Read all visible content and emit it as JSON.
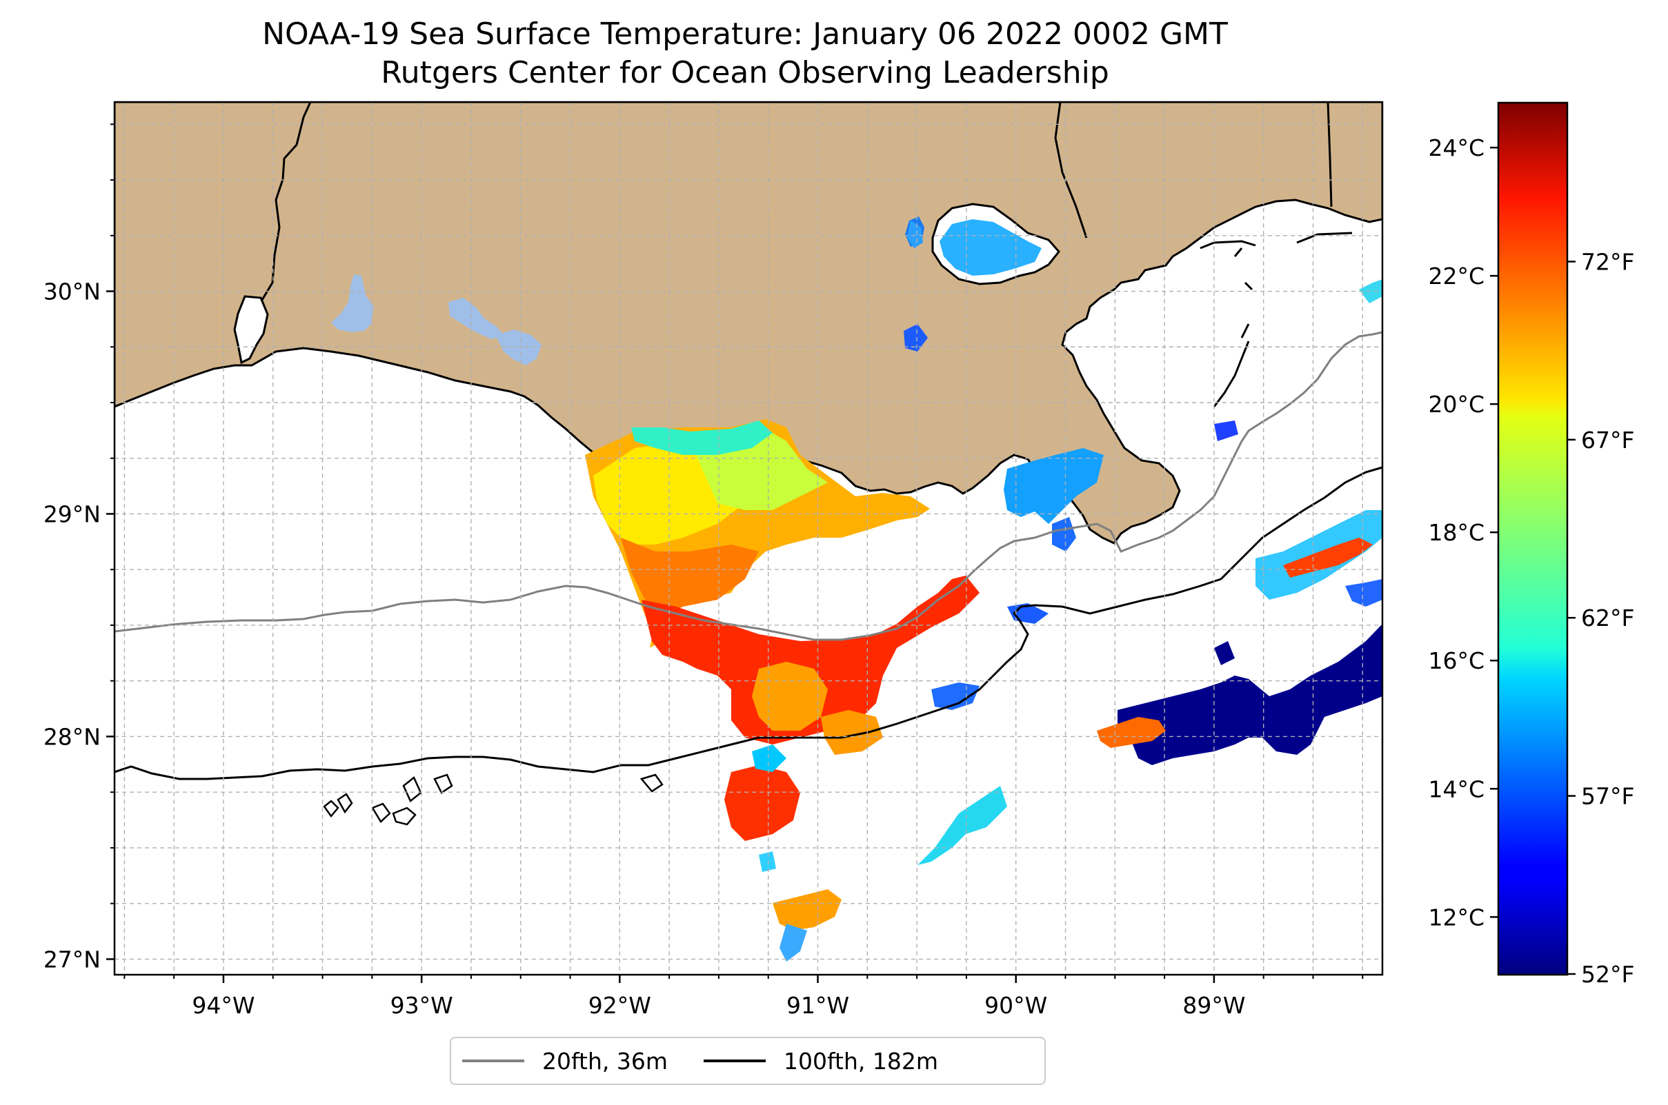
{
  "title": {
    "line1": "NOAA-19 Sea Surface Temperature: January 06 2022 0002 GMT",
    "line2": "Rutgers Center for Ocean Observing Leadership"
  },
  "map": {
    "lon_range": [
      -94.55,
      -88.15
    ],
    "lat_range": [
      26.93,
      30.85
    ],
    "lon_ticks": [
      -94,
      -93,
      -92,
      -91,
      -90,
      -89
    ],
    "lon_tick_labels": [
      "94°W",
      "93°W",
      "92°W",
      "91°W",
      "90°W",
      "89°W"
    ],
    "lat_ticks": [
      27,
      28,
      29,
      30
    ],
    "lat_tick_labels": [
      "27°N",
      "28°N",
      "29°N",
      "30°N"
    ],
    "gridlines": true,
    "colors": {
      "land": "#d2b48c",
      "ocean": "#ffffff",
      "lakes": "#9fbfe8",
      "isobath_20fth": "#808080",
      "isobath_100fth": "#000000"
    }
  },
  "colorbar": {
    "colormap": "jet",
    "range_celsius": [
      11.1,
      24.7
    ],
    "celsius_ticks": [
      12,
      14,
      16,
      18,
      20,
      22,
      24
    ],
    "celsius_labels": [
      "12°C",
      "14°C",
      "16°C",
      "18°C",
      "20°C",
      "22°C",
      "24°C"
    ],
    "fahrenheit_ticks": [
      52,
      57,
      62,
      67,
      72
    ],
    "fahrenheit_labels": [
      "52°F",
      "57°F",
      "62°F",
      "67°F",
      "72°F"
    ]
  },
  "legend": {
    "placement": "bottom-center",
    "items": [
      {
        "label": "20fth, 36m",
        "color": "#808080"
      },
      {
        "label": "100fth, 182m",
        "color": "#000000"
      }
    ]
  }
}
